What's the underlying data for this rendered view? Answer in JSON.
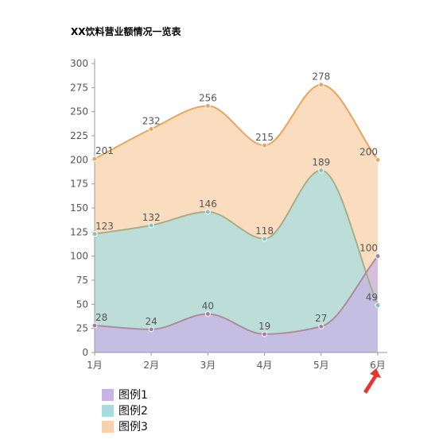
{
  "chart_data": {
    "type": "area",
    "title": "XX饮料营业额情况一览表",
    "categories": [
      "1月",
      "2月",
      "3月",
      "4月",
      "5月",
      "6月"
    ],
    "ylim": [
      0,
      300
    ],
    "yticks": [
      0,
      25,
      50,
      75,
      100,
      125,
      150,
      175,
      200,
      225,
      250,
      275,
      300
    ],
    "grid": false,
    "legend_position": "bottom-left",
    "series": [
      {
        "name": "图例1",
        "values": [
          28,
          24,
          40,
          19,
          27,
          100
        ],
        "line_color": "#b08aa0",
        "fill_color": "#c7b4e6",
        "point_color": "#a87aa8"
      },
      {
        "name": "图例2",
        "values": [
          123,
          132,
          146,
          118,
          189,
          49
        ],
        "line_color": "#a3b08e",
        "fill_color": "#a8dde0",
        "point_color": "#7fc4c0"
      },
      {
        "name": "图例3",
        "values": [
          201,
          232,
          256,
          215,
          278,
          200
        ],
        "line_color": "#eba45a",
        "fill_color": "#f8d1a8",
        "point_color": "#eba45a"
      }
    ],
    "annotation": {
      "type": "arrow",
      "color": "#e8342c",
      "target": "6月"
    }
  }
}
